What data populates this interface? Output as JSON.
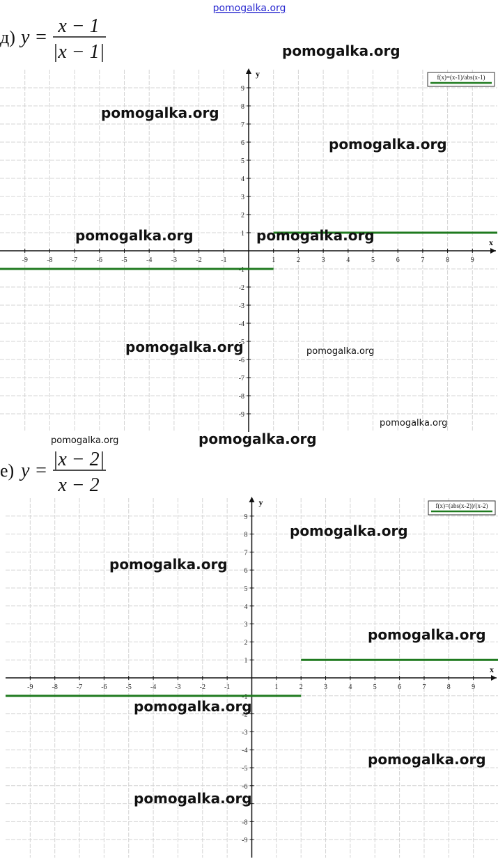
{
  "watermarks": [
    "pomogalka.org",
    "pomogalka.org",
    "pomogalka.org",
    "pomogalka.org",
    "pomogalka.org",
    "pomogalka.org",
    "pomogalka.org",
    "pomogalka.org",
    "pomogalka.org",
    "pomogalka.org",
    "pomogalka.org",
    "pomogalka.org",
    "pomogalka.org",
    "pomogalka.org",
    "pomogalka.org",
    "pomogalka.org",
    "pomogalka.org"
  ],
  "chart_data": [
    {
      "type": "line",
      "label": "д)",
      "formula": {
        "lhs": "y =",
        "numerator": "x − 1",
        "denominator": "|x − 1|"
      },
      "x_label": "x",
      "y_label": "y",
      "legend": "f(x)=(x-1)/abs(x-1)",
      "xlim": [
        -10,
        10
      ],
      "ylim": [
        -10,
        10
      ],
      "xticks": [
        -9,
        -8,
        -7,
        -6,
        -5,
        -4,
        -3,
        -2,
        -1,
        1,
        2,
        3,
        4,
        5,
        6,
        7,
        8,
        9
      ],
      "yticks": [
        -9,
        -8,
        -7,
        -6,
        -5,
        -4,
        -3,
        -2,
        -1,
        1,
        2,
        3,
        4,
        5,
        6,
        7,
        8,
        9
      ],
      "grid": true,
      "series": [
        {
          "name": "f(x)=(x-1)/abs(x-1)",
          "color": "#1f7a1f",
          "x": [
            -10,
            1,
            1,
            1,
            10
          ],
          "values": [
            -1,
            -1,
            null,
            1,
            1
          ]
        }
      ]
    },
    {
      "type": "line",
      "label": "е)",
      "formula": {
        "lhs": "y =",
        "numerator": "|x − 2|",
        "denominator": "x − 2"
      },
      "x_label": "x",
      "y_label": "y",
      "legend": "f(x)=(abs(x-2))/(x-2)",
      "xlim": [
        -10,
        10
      ],
      "ylim": [
        -10,
        10
      ],
      "xticks": [
        -9,
        -8,
        -7,
        -6,
        -5,
        -4,
        -3,
        -2,
        -1,
        1,
        2,
        3,
        4,
        5,
        6,
        7,
        8,
        9
      ],
      "yticks": [
        -9,
        -8,
        -7,
        -6,
        -5,
        -4,
        -3,
        -2,
        -1,
        1,
        2,
        3,
        4,
        5,
        6,
        7,
        8,
        9
      ],
      "grid": true,
      "series": [
        {
          "name": "f(x)=(abs(x-2))/(x-2)",
          "color": "#1f7a1f",
          "x": [
            -10,
            2,
            2,
            2,
            10
          ],
          "values": [
            -1,
            -1,
            null,
            1,
            1
          ]
        }
      ]
    }
  ]
}
